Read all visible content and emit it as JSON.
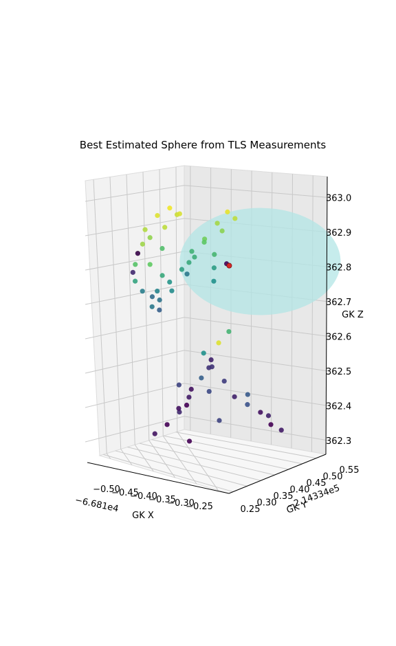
{
  "chart_data": {
    "type": "scatter",
    "projection": "3d",
    "title": "Best Estimated Sphere from TLS Measurements",
    "xlabel": "GK X",
    "ylabel": "GK Y",
    "zlabel": "GK Z",
    "x_offset_text": "−6.681e4",
    "y_offset_text": "−2.14334e5",
    "xticks": [
      "−0.50",
      "−0.45",
      "−0.40",
      "−0.35",
      "−0.30",
      "−0.25"
    ],
    "yticks": [
      "0.25",
      "0.30",
      "0.35",
      "0.40",
      "0.45",
      "0.50",
      "0.55"
    ],
    "zticks": [
      "362.3",
      "362.4",
      "362.5",
      "362.6",
      "362.7",
      "362.8",
      "362.9",
      "363.0"
    ],
    "xlim": [
      -0.53,
      -0.23
    ],
    "ylim": [
      0.22,
      0.57
    ],
    "zlim": [
      362.26,
      363.06
    ],
    "grid": true,
    "colormap": "viridis",
    "sphere_color": "#b3e6e6",
    "sphere_center_color": "#d62728",
    "point_colors": [
      "#440154",
      "#3b528b",
      "#21918c",
      "#5ec962",
      "#fde725"
    ],
    "sphere": {
      "center": [
        -0.33,
        0.4,
        362.846
      ],
      "note": "best-fit sphere surface"
    },
    "points": [
      [
        -0.455,
        0.36,
        362.97,
        0.95
      ],
      [
        -0.44,
        0.38,
        362.99,
        0.98
      ],
      [
        -0.42,
        0.37,
        362.98,
        0.92
      ],
      [
        -0.47,
        0.34,
        362.93,
        0.88
      ],
      [
        -0.46,
        0.31,
        362.9,
        0.85
      ],
      [
        -0.48,
        0.33,
        362.86,
        0.8
      ],
      [
        -0.47,
        0.36,
        362.82,
        0.75
      ],
      [
        -0.45,
        0.37,
        362.79,
        0.6
      ],
      [
        -0.44,
        0.33,
        362.76,
        0.45
      ],
      [
        -0.43,
        0.36,
        362.78,
        0.52
      ],
      [
        -0.41,
        0.39,
        362.8,
        0.4
      ],
      [
        -0.4,
        0.4,
        362.85,
        0.62
      ],
      [
        -0.39,
        0.42,
        362.9,
        0.78
      ],
      [
        -0.38,
        0.45,
        362.94,
        0.86
      ],
      [
        -0.37,
        0.47,
        362.97,
        0.96
      ],
      [
        -0.42,
        0.3,
        362.72,
        0.3
      ],
      [
        -0.43,
        0.32,
        362.74,
        0.38
      ],
      [
        -0.44,
        0.35,
        362.88,
        0.7
      ],
      [
        -0.46,
        0.4,
        362.92,
        0.9
      ],
      [
        -0.48,
        0.38,
        362.89,
        0.83
      ],
      [
        -0.45,
        0.44,
        362.95,
        0.94
      ],
      [
        -0.36,
        0.4,
        362.87,
        0.66
      ],
      [
        -0.35,
        0.38,
        362.84,
        0.55
      ],
      [
        -0.34,
        0.36,
        362.81,
        0.5
      ],
      [
        -0.47,
        0.3,
        362.84,
        0.72
      ],
      [
        -0.46,
        0.28,
        362.8,
        0.58
      ],
      [
        -0.45,
        0.29,
        362.77,
        0.42
      ],
      [
        -0.44,
        0.31,
        362.75,
        0.35
      ],
      [
        -0.43,
        0.29,
        362.73,
        0.4
      ],
      [
        -0.41,
        0.33,
        362.77,
        0.48
      ],
      [
        -0.4,
        0.35,
        362.83,
        0.56
      ],
      [
        -0.39,
        0.37,
        362.88,
        0.64
      ],
      [
        -0.38,
        0.34,
        362.86,
        0.6
      ],
      [
        -0.37,
        0.38,
        362.91,
        0.74
      ],
      [
        -0.36,
        0.43,
        362.93,
        0.82
      ],
      [
        -0.35,
        0.46,
        362.96,
        0.9
      ],
      [
        -0.49,
        0.35,
        362.85,
        0.02
      ],
      [
        -0.48,
        0.31,
        362.81,
        0.12
      ],
      [
        -0.33,
        0.39,
        362.855,
        0.0
      ],
      [
        -0.34,
        0.35,
        362.58,
        0.1
      ],
      [
        -0.35,
        0.34,
        362.6,
        0.5
      ],
      [
        -0.33,
        0.36,
        362.63,
        0.95
      ],
      [
        -0.32,
        0.38,
        362.66,
        0.65
      ],
      [
        -0.35,
        0.36,
        362.55,
        0.15
      ],
      [
        -0.36,
        0.35,
        362.52,
        0.3
      ],
      [
        -0.37,
        0.33,
        362.49,
        0.05
      ],
      [
        -0.38,
        0.34,
        362.46,
        0.08
      ],
      [
        -0.39,
        0.35,
        362.43,
        0.0
      ],
      [
        -0.36,
        0.38,
        362.47,
        0.22
      ],
      [
        -0.34,
        0.4,
        362.5,
        0.18
      ],
      [
        -0.33,
        0.42,
        362.45,
        0.1
      ],
      [
        -0.32,
        0.45,
        362.42,
        0.25
      ],
      [
        -0.31,
        0.48,
        362.39,
        0.05
      ],
      [
        -0.3,
        0.5,
        362.35,
        0.0
      ],
      [
        -0.29,
        0.52,
        362.33,
        0.08
      ],
      [
        -0.41,
        0.36,
        362.4,
        0.12
      ],
      [
        -0.43,
        0.35,
        362.36,
        0.0
      ],
      [
        -0.45,
        0.34,
        362.33,
        0.06
      ],
      [
        -0.4,
        0.38,
        362.31,
        0.0
      ],
      [
        -0.35,
        0.4,
        362.38,
        0.2
      ],
      [
        -0.37,
        0.41,
        362.53,
        0.15
      ],
      [
        -0.33,
        0.47,
        362.44,
        0.28
      ],
      [
        -0.31,
        0.51,
        362.37,
        0.1
      ],
      [
        -0.39,
        0.32,
        362.5,
        0.2
      ],
      [
        -0.38,
        0.3,
        362.44,
        0.05
      ]
    ]
  }
}
